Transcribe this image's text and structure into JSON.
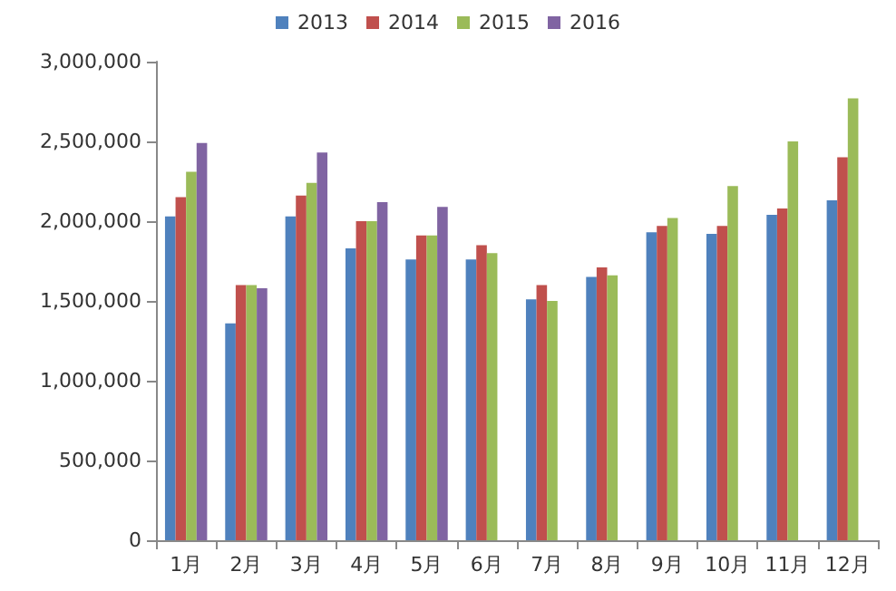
{
  "chart_data": {
    "type": "bar",
    "categories": [
      "1月",
      "2月",
      "3月",
      "4月",
      "5月",
      "6月",
      "7月",
      "8月",
      "9月",
      "10月",
      "11月",
      "12月"
    ],
    "series": [
      {
        "name": "2013",
        "color": "#4f81bd",
        "values": [
          2030000,
          1360000,
          2030000,
          1830000,
          1760000,
          1760000,
          1510000,
          1650000,
          1930000,
          1920000,
          2040000,
          2130000
        ]
      },
      {
        "name": "2014",
        "color": "#c0504d",
        "values": [
          2150000,
          1600000,
          2160000,
          2000000,
          1910000,
          1850000,
          1600000,
          1710000,
          1970000,
          1970000,
          2080000,
          2400000
        ]
      },
      {
        "name": "2015",
        "color": "#9bbb59",
        "values": [
          2310000,
          1600000,
          2240000,
          2000000,
          1910000,
          1800000,
          1500000,
          1660000,
          2020000,
          2220000,
          2500000,
          2770000
        ]
      },
      {
        "name": "2016",
        "color": "#8064a2",
        "values": [
          2490000,
          1580000,
          2430000,
          2120000,
          2090000,
          null,
          null,
          null,
          null,
          null,
          null,
          null
        ]
      }
    ],
    "ylim": [
      0,
      3000000
    ],
    "yticks": [
      {
        "value": 0,
        "label": "0"
      },
      {
        "value": 500000,
        "label": "500,000"
      },
      {
        "value": 1000000,
        "label": "1,000,000"
      },
      {
        "value": 1500000,
        "label": "1,500,000"
      },
      {
        "value": 2000000,
        "label": "2,000,000"
      },
      {
        "value": 2500000,
        "label": "2,500,000"
      },
      {
        "value": 3000000,
        "label": "3,000,000"
      }
    ],
    "grid": false,
    "legend": "top"
  }
}
